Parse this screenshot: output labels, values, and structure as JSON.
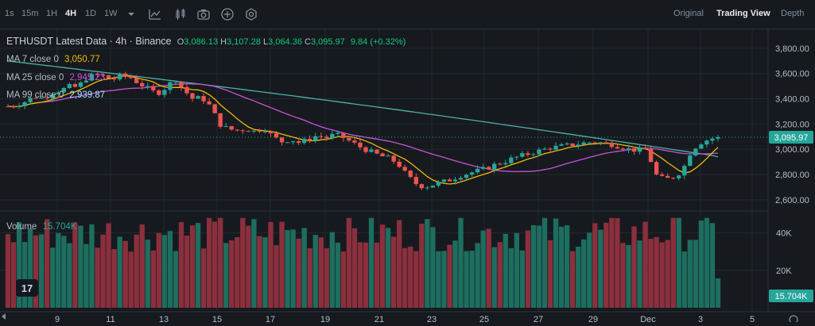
{
  "toolbar": {
    "intervals": [
      "1s",
      "15m",
      "1H",
      "4H",
      "1D",
      "1W"
    ],
    "active_interval": "4H",
    "views": [
      "Original",
      "Trading View",
      "Depth"
    ],
    "active_view": "Trading View"
  },
  "legend": {
    "title": "ETHUSDT Latest Data · 4h · Binance",
    "o_label": "O",
    "o": "3,086.13",
    "h_label": "H",
    "h": "3,107.28",
    "l_label": "L",
    "l": "3,064.36",
    "c_label": "C",
    "c": "3,095.97",
    "change": "9.84 (+0.32%)",
    "ma7_label": "MA 7 close 0",
    "ma7": "3,050.77",
    "ma25_label": "MA 25 close 0",
    "ma25": "2,945.23",
    "ma99_label": "MA 99 close 0",
    "ma99": "2,939.87",
    "volume_label": "Volume",
    "volume": "15.704K"
  },
  "colors": {
    "up": "#26a69a",
    "down": "#ef5350",
    "ma7": "#f0b90b",
    "ma25": "#c653d9",
    "ma99": "#4fb1a8",
    "bg": "#161a1e",
    "grid": "#232830",
    "text": "#b7bdc6",
    "price_tag": "#26a69a"
  },
  "chart_data": {
    "type": "candlestick",
    "y_ticks": [
      "3,800.00",
      "3,600.00",
      "3,400.00",
      "3,200.00",
      "3,000.00",
      "2,800.00",
      "2,600.00"
    ],
    "y_tick_values": [
      3800,
      3600,
      3400,
      3200,
      3000,
      2800,
      2600
    ],
    "ylim": [
      2530,
      3900
    ],
    "last_price": "3,095.97",
    "last_price_value": 3095.97,
    "x_ticks": [
      "9",
      "11",
      "13",
      "15",
      "17",
      "19",
      "21",
      "23",
      "25",
      "27",
      "29",
      "Dec",
      "3",
      "5"
    ],
    "volume_ticks": [
      "40K",
      "20K"
    ],
    "volume_tick_values": [
      40000,
      20000
    ],
    "volume_last": "15.704K",
    "volume_last_value": 15704,
    "ma99_last": 2939.87,
    "ma25_last": 2945.23,
    "ma7_last": 3050.77
  }
}
